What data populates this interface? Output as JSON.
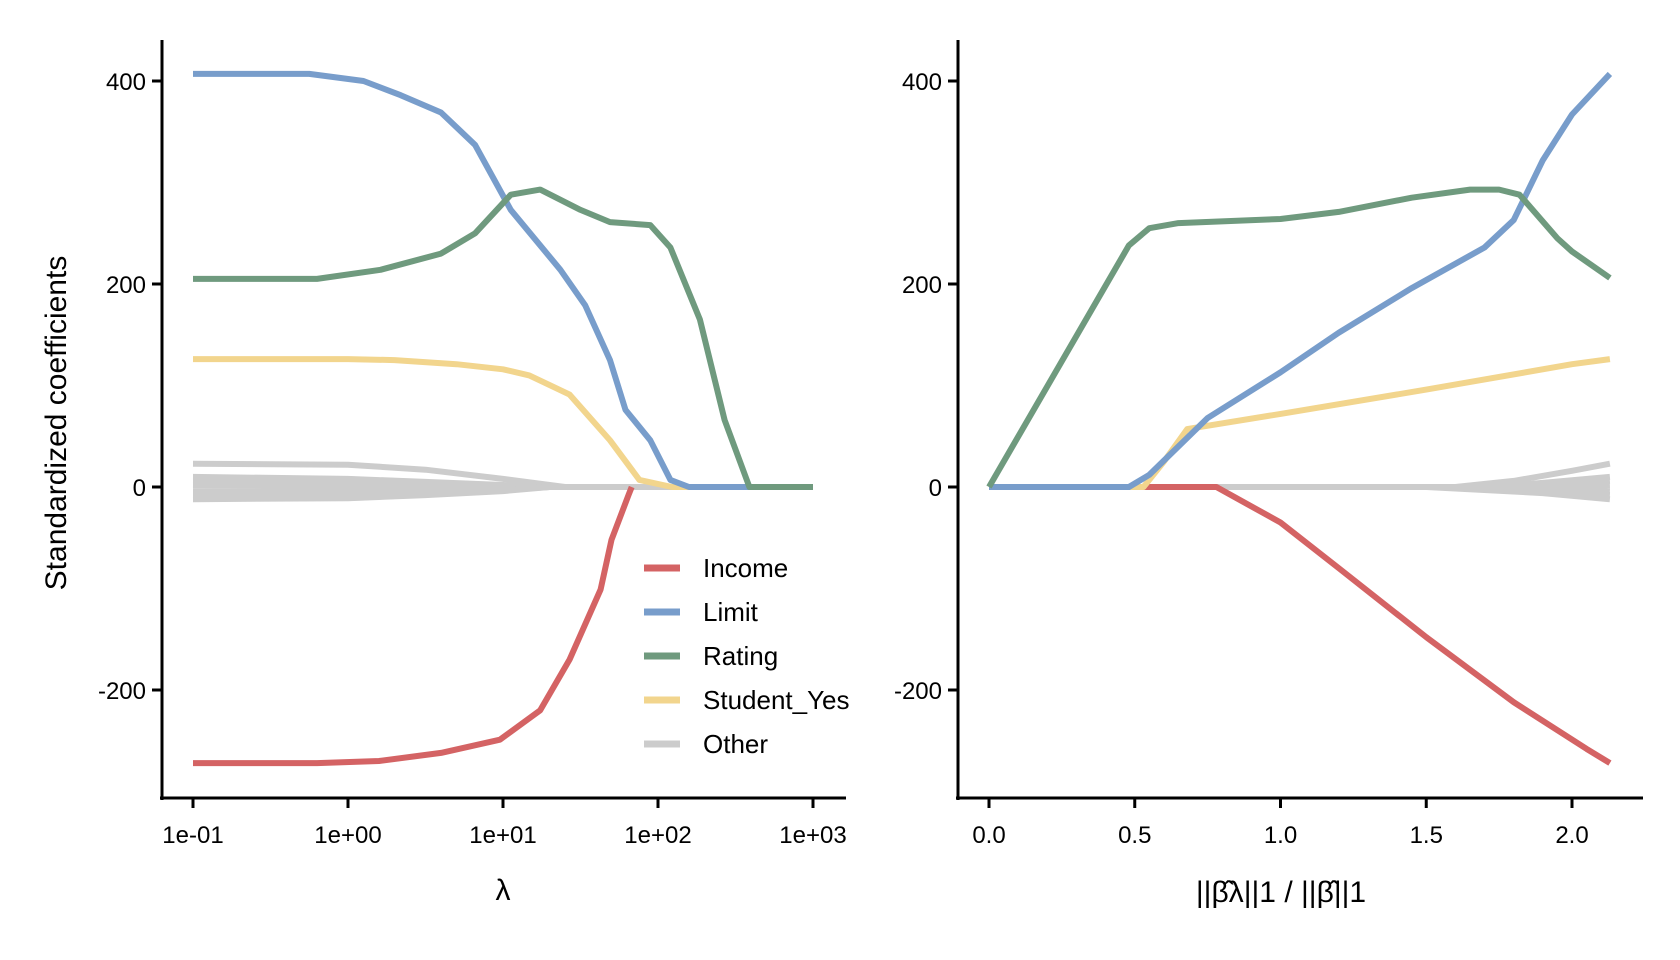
{
  "chart_data": [
    {
      "type": "line",
      "panel": "left",
      "xscale": "log10",
      "xlabel": "λ",
      "ylabel": "Standardized coefficients",
      "xlim": [
        0.1,
        1000
      ],
      "ylim": [
        -300,
        440
      ],
      "xticks": [
        {
          "value": 0.1,
          "label": "1e-01"
        },
        {
          "value": 1,
          "label": "1e+00"
        },
        {
          "value": 10,
          "label": "1e+01"
        },
        {
          "value": 100,
          "label": "1e+02"
        },
        {
          "value": 1000,
          "label": "1e+03"
        }
      ],
      "yticks": [
        {
          "value": 400,
          "label": "400"
        },
        {
          "value": 200,
          "label": "200"
        },
        {
          "value": 0,
          "label": "0"
        },
        {
          "value": -200,
          "label": "-200"
        }
      ],
      "grid": false,
      "legend": {
        "placement": "bottom-right",
        "entries": [
          {
            "label": "Income",
            "color": "#d46364"
          },
          {
            "label": "Limit",
            "color": "#789dcb"
          },
          {
            "label": "Rating",
            "color": "#6f9a7e"
          },
          {
            "label": "Student_Yes",
            "color": "#f2d58d"
          },
          {
            "label": "Other",
            "color": "#cccccc"
          }
        ]
      },
      "series": [
        {
          "name": "Other",
          "color": "#cccccc",
          "x_log10": [
            -1,
            0,
            0.5,
            1,
            1.4,
            3
          ],
          "values": [
            23,
            22,
            17,
            8,
            0,
            0
          ]
        },
        {
          "name": "Other",
          "color": "#cccccc",
          "x_log10": [
            -1,
            0,
            0.5,
            1,
            1.3,
            3
          ],
          "values": [
            10,
            8,
            5,
            2,
            0,
            0
          ]
        },
        {
          "name": "Other",
          "color": "#cccccc",
          "x_log10": [
            -1,
            0,
            0.5,
            1,
            1.3,
            3
          ],
          "values": [
            6,
            5,
            3,
            1,
            0,
            0
          ]
        },
        {
          "name": "Other",
          "color": "#cccccc",
          "x_log10": [
            -1,
            0,
            0.5,
            1,
            1.3,
            3
          ],
          "values": [
            2,
            1,
            0,
            -1,
            0,
            0
          ]
        },
        {
          "name": "Other",
          "color": "#cccccc",
          "x_log10": [
            -1,
            0,
            0.5,
            1,
            1.3,
            3
          ],
          "values": [
            -4,
            -4,
            -3,
            -1,
            0,
            0
          ]
        },
        {
          "name": "Other",
          "color": "#cccccc",
          "x_log10": [
            -1,
            0,
            0.5,
            1,
            1.3,
            3
          ],
          "values": [
            -8,
            -8,
            -6,
            -3,
            0,
            0
          ]
        },
        {
          "name": "Other",
          "color": "#cccccc",
          "x_log10": [
            -1,
            0,
            0.5,
            1,
            1.3,
            3
          ],
          "values": [
            -12,
            -11,
            -8,
            -4,
            0,
            0
          ]
        },
        {
          "name": "Student_Yes",
          "color": "#f2d58d",
          "x_log10": [
            -1,
            0,
            0.3,
            0.7,
            1.0,
            1.17,
            1.43,
            1.69,
            1.88,
            2.09,
            3
          ],
          "values": [
            126,
            126,
            125,
            121,
            116,
            110,
            91,
            46,
            7,
            0,
            0
          ]
        },
        {
          "name": "Limit",
          "color": "#789dcb",
          "x_log10": [
            -1,
            -0.25,
            0.1,
            0.34,
            0.6,
            0.82,
            1.05,
            1.37,
            1.53,
            1.69,
            1.79,
            1.95,
            2.08,
            2.2,
            3
          ],
          "values": [
            407,
            407,
            400,
            386,
            369,
            337,
            273,
            214,
            179,
            125,
            76,
            46,
            7,
            0,
            0
          ]
        },
        {
          "name": "Rating",
          "color": "#6f9a7e",
          "x_log10": [
            -1,
            -0.2,
            0.21,
            0.6,
            0.82,
            1.05,
            1.24,
            1.5,
            1.69,
            1.95,
            2.08,
            2.27,
            2.43,
            2.59,
            3
          ],
          "values": [
            205,
            205,
            214,
            230,
            250,
            288,
            293,
            273,
            261,
            258,
            236,
            165,
            66,
            0,
            0
          ]
        },
        {
          "name": "Income",
          "color": "#d46364",
          "x_log10": [
            -1,
            -0.2,
            0.2,
            0.6,
            0.98,
            1.24,
            1.43,
            1.63,
            1.7,
            1.81,
            1.83
          ],
          "values": [
            -272,
            -272,
            -270,
            -262,
            -249,
            -220,
            -170,
            -101,
            -52,
            -8,
            0
          ]
        }
      ]
    },
    {
      "type": "line",
      "panel": "right",
      "xlabel": "||β̂λ||1 / ||β̂||1",
      "xlim": [
        -0.1,
        2.25
      ],
      "ylim": [
        -300,
        440
      ],
      "xticks": [
        {
          "value": 0.0,
          "label": "0.0"
        },
        {
          "value": 0.5,
          "label": "0.5"
        },
        {
          "value": 1.0,
          "label": "1.0"
        },
        {
          "value": 1.5,
          "label": "1.5"
        },
        {
          "value": 2.0,
          "label": "2.0"
        }
      ],
      "yticks": [
        {
          "value": 400,
          "label": "400"
        },
        {
          "value": 200,
          "label": "200"
        },
        {
          "value": 0,
          "label": "0"
        },
        {
          "value": -200,
          "label": "-200"
        }
      ],
      "grid": false,
      "series": [
        {
          "name": "Other",
          "color": "#cccccc",
          "x": [
            0,
            1.6,
            1.8,
            2.0,
            2.13
          ],
          "values": [
            0,
            0,
            6,
            16,
            23
          ]
        },
        {
          "name": "Other",
          "color": "#cccccc",
          "x": [
            0,
            1.7,
            1.9,
            2.13
          ],
          "values": [
            0,
            0,
            4,
            10
          ]
        },
        {
          "name": "Other",
          "color": "#cccccc",
          "x": [
            0,
            1.8,
            2.13
          ],
          "values": [
            0,
            0,
            6
          ]
        },
        {
          "name": "Other",
          "color": "#cccccc",
          "x": [
            0,
            1.8,
            2.13
          ],
          "values": [
            0,
            0,
            2
          ]
        },
        {
          "name": "Other",
          "color": "#cccccc",
          "x": [
            0,
            1.7,
            2.13
          ],
          "values": [
            0,
            0,
            -4
          ]
        },
        {
          "name": "Other",
          "color": "#cccccc",
          "x": [
            0,
            1.6,
            2.0,
            2.13
          ],
          "values": [
            0,
            0,
            -6,
            -8
          ]
        },
        {
          "name": "Other",
          "color": "#cccccc",
          "x": [
            0,
            1.5,
            1.9,
            2.13
          ],
          "values": [
            0,
            0,
            -6,
            -12
          ]
        },
        {
          "name": "Income",
          "color": "#d46364",
          "x": [
            0,
            0.78,
            1.0,
            1.2,
            1.5,
            1.8,
            2.05,
            2.13
          ],
          "values": [
            0,
            0,
            -35,
            -80,
            -148,
            -212,
            -258,
            -272
          ]
        },
        {
          "name": "Student_Yes",
          "color": "#f2d58d",
          "x": [
            0,
            0.53,
            0.6,
            0.68,
            1.0,
            1.5,
            2.0,
            2.13
          ],
          "values": [
            0,
            0,
            25,
            57,
            72,
            96,
            121,
            126
          ]
        },
        {
          "name": "Limit",
          "color": "#789dcb",
          "x": [
            0,
            0.48,
            0.55,
            0.75,
            1.0,
            1.2,
            1.45,
            1.7,
            1.8,
            1.9,
            2.0,
            2.13
          ],
          "values": [
            0,
            0,
            12,
            68,
            113,
            152,
            196,
            236,
            263,
            322,
            367,
            407
          ]
        },
        {
          "name": "Rating",
          "color": "#6f9a7e",
          "x": [
            0,
            0.48,
            0.55,
            0.65,
            1.0,
            1.2,
            1.45,
            1.65,
            1.75,
            1.82,
            1.95,
            2.0,
            2.13
          ],
          "values": [
            0,
            238,
            255,
            260,
            264,
            271,
            285,
            293,
            293,
            288,
            245,
            232,
            206
          ]
        }
      ]
    }
  ]
}
